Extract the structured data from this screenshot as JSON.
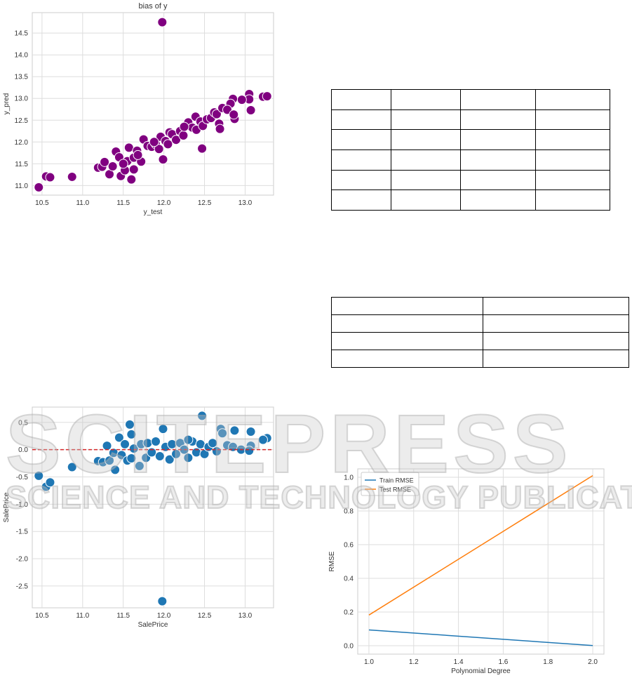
{
  "watermark": {
    "brand": "SCITEPRESS",
    "tagline": "SCIENCE AND TECHNOLOGY PUBLICATIONS"
  },
  "tables": [
    {
      "rows": [
        [
          "",
          "",
          "",
          ""
        ],
        [
          "",
          "",
          "",
          ""
        ],
        [
          "",
          "",
          "",
          ""
        ],
        [
          "",
          "",
          "",
          ""
        ],
        [
          "",
          "",
          "",
          ""
        ],
        [
          "",
          "",
          "",
          ""
        ]
      ]
    },
    {
      "rows": [
        [
          "",
          ""
        ],
        [
          "",
          ""
        ],
        [
          "",
          ""
        ],
        [
          "",
          ""
        ]
      ]
    }
  ],
  "chart_data": [
    {
      "type": "scatter",
      "title": "bias of y",
      "xlabel": "y_test",
      "ylabel": "y_pred",
      "xlim": [
        10.38,
        13.35
      ],
      "ylim": [
        10.78,
        14.97
      ],
      "xticks": [
        "10.5",
        "11.0",
        "11.5",
        "12.0",
        "12.5",
        "13.0"
      ],
      "yticks": [
        "11.0",
        "11.5",
        "12.0",
        "12.5",
        "13.0",
        "13.5",
        "14.0",
        "14.5"
      ],
      "grid": true,
      "color": "#800080",
      "points": [
        [
          10.46,
          10.96
        ],
        [
          10.55,
          11.21
        ],
        [
          10.6,
          11.19
        ],
        [
          10.87,
          11.2
        ],
        [
          11.98,
          14.75
        ],
        [
          12.47,
          11.85
        ],
        [
          13.07,
          12.73
        ],
        [
          13.05,
          13.1
        ],
        [
          13.05,
          12.98
        ],
        [
          13.22,
          13.04
        ],
        [
          13.27,
          13.05
        ],
        [
          12.87,
          12.53
        ],
        [
          12.96,
          12.97
        ],
        [
          12.85,
          12.99
        ],
        [
          12.82,
          12.88
        ],
        [
          11.6,
          11.14
        ],
        [
          11.99,
          11.6
        ],
        [
          11.19,
          11.41
        ],
        [
          11.24,
          11.43
        ],
        [
          11.27,
          11.54
        ],
        [
          11.33,
          11.26
        ],
        [
          11.37,
          11.44
        ],
        [
          11.41,
          11.78
        ],
        [
          11.45,
          11.65
        ],
        [
          11.47,
          11.22
        ],
        [
          11.52,
          11.35
        ],
        [
          11.55,
          11.56
        ],
        [
          11.57,
          11.87
        ],
        [
          11.63,
          11.64
        ],
        [
          11.63,
          11.37
        ],
        [
          11.67,
          11.8
        ],
        [
          11.72,
          11.55
        ],
        [
          11.75,
          12.06
        ],
        [
          11.8,
          11.91
        ],
        [
          11.85,
          11.89
        ],
        [
          11.9,
          11.95
        ],
        [
          11.94,
          11.84
        ],
        [
          11.96,
          12.12
        ],
        [
          12.02,
          12.02
        ],
        [
          12.07,
          12.22
        ],
        [
          12.1,
          12.18
        ],
        [
          12.15,
          12.05
        ],
        [
          12.2,
          12.25
        ],
        [
          12.24,
          12.15
        ],
        [
          12.3,
          12.45
        ],
        [
          12.35,
          12.33
        ],
        [
          12.39,
          12.58
        ],
        [
          12.4,
          12.28
        ],
        [
          12.45,
          12.47
        ],
        [
          12.48,
          12.37
        ],
        [
          12.53,
          12.52
        ],
        [
          12.58,
          12.55
        ],
        [
          12.62,
          12.68
        ],
        [
          12.65,
          12.64
        ],
        [
          12.68,
          12.42
        ],
        [
          12.69,
          12.3
        ],
        [
          12.72,
          12.78
        ],
        [
          12.78,
          12.74
        ],
        [
          12.86,
          12.63
        ],
        [
          11.68,
          11.7
        ],
        [
          11.88,
          12.0
        ],
        [
          12.05,
          11.95
        ],
        [
          12.25,
          12.35
        ],
        [
          11.5,
          11.5
        ]
      ]
    },
    {
      "type": "scatter",
      "title": "",
      "xlabel": "SalePrice",
      "ylabel": "SalePrice",
      "xlim": [
        10.38,
        13.35
      ],
      "ylim": [
        -2.9,
        0.78
      ],
      "xticks": [
        "10.5",
        "11.0",
        "11.5",
        "12.0",
        "12.5",
        "13.0"
      ],
      "yticks": [
        "0.5",
        "0.0",
        "-0.5",
        "-1.0",
        "-1.5",
        "-2.0",
        "-2.5"
      ],
      "grid": true,
      "color": "#1f77b4",
      "reference_line": {
        "y": 0,
        "color": "#d62728",
        "style": "dashed"
      },
      "points": [
        [
          10.46,
          -0.48
        ],
        [
          10.55,
          -0.68
        ],
        [
          10.6,
          -0.6
        ],
        [
          10.87,
          -0.32
        ],
        [
          11.98,
          -2.78
        ],
        [
          12.47,
          0.62
        ],
        [
          11.58,
          0.46
        ],
        [
          11.99,
          0.38
        ],
        [
          13.27,
          0.21
        ],
        [
          13.22,
          0.18
        ],
        [
          13.07,
          0.33
        ],
        [
          13.07,
          0.07
        ],
        [
          12.87,
          0.35
        ],
        [
          12.7,
          0.38
        ],
        [
          11.19,
          -0.21
        ],
        [
          11.25,
          -0.23
        ],
        [
          11.3,
          0.07
        ],
        [
          11.33,
          -0.2
        ],
        [
          11.38,
          -0.06
        ],
        [
          11.4,
          -0.37
        ],
        [
          11.45,
          0.22
        ],
        [
          11.48,
          -0.1
        ],
        [
          11.52,
          0.1
        ],
        [
          11.55,
          -0.2
        ],
        [
          11.6,
          0.28
        ],
        [
          11.6,
          -0.16
        ],
        [
          11.63,
          0.02
        ],
        [
          11.7,
          -0.3
        ],
        [
          11.72,
          0.1
        ],
        [
          11.78,
          -0.15
        ],
        [
          11.8,
          0.12
        ],
        [
          11.85,
          -0.05
        ],
        [
          11.9,
          0.15
        ],
        [
          11.95,
          -0.12
        ],
        [
          12.02,
          0.05
        ],
        [
          12.07,
          -0.18
        ],
        [
          12.1,
          0.1
        ],
        [
          12.15,
          -0.08
        ],
        [
          12.2,
          0.12
        ],
        [
          12.25,
          0.0
        ],
        [
          12.3,
          -0.15
        ],
        [
          12.35,
          0.15
        ],
        [
          12.4,
          -0.05
        ],
        [
          12.45,
          0.1
        ],
        [
          12.5,
          -0.08
        ],
        [
          12.55,
          0.05
        ],
        [
          12.6,
          0.12
        ],
        [
          12.65,
          -0.03
        ],
        [
          12.72,
          0.3
        ],
        [
          12.78,
          0.08
        ],
        [
          12.85,
          0.05
        ],
        [
          12.95,
          0.0
        ],
        [
          13.05,
          -0.02
        ],
        [
          12.3,
          0.18
        ]
      ]
    },
    {
      "type": "line",
      "title": "",
      "xlabel": "Polynomial Degree",
      "ylabel": "RMSE",
      "xlim": [
        0.95,
        2.05
      ],
      "ylim": [
        -0.05,
        1.05
      ],
      "xticks": [
        "1.0",
        "1.2",
        "1.4",
        "1.6",
        "1.8",
        "2.0"
      ],
      "yticks": [
        "0.0",
        "0.2",
        "0.4",
        "0.6",
        "0.8",
        "1.0"
      ],
      "grid": true,
      "legend": "top-left",
      "x": [
        1.0,
        2.0
      ],
      "series": [
        {
          "name": "Train RMSE",
          "values": [
            0.094,
            0.001
          ],
          "color": "#1f77b4"
        },
        {
          "name": "Test RMSE",
          "values": [
            0.182,
            1.01
          ],
          "color": "#ff7f0e"
        }
      ]
    }
  ]
}
